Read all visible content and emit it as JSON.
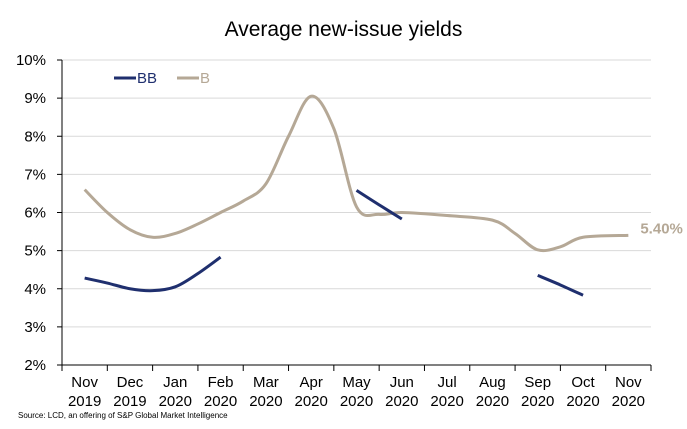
{
  "chart_data": {
    "type": "line",
    "title": "Average new-issue yields",
    "source": "Source: LCD, an offering of S&P Global Market Intelligence",
    "xlabel": "",
    "ylabel": "",
    "ylim": [
      2,
      10
    ],
    "y_ticks": [
      "2%",
      "3%",
      "4%",
      "5%",
      "6%",
      "7%",
      "8%",
      "9%",
      "10%"
    ],
    "grid": true,
    "legend_position": "top-left",
    "categories": [
      [
        "Nov",
        "2019"
      ],
      [
        "Dec",
        "2019"
      ],
      [
        "Jan",
        "2020"
      ],
      [
        "Feb",
        "2020"
      ],
      [
        "Mar",
        "2020"
      ],
      [
        "Apr",
        "2020"
      ],
      [
        "May",
        "2020"
      ],
      [
        "Jun",
        "2020"
      ],
      [
        "Jul",
        "2020"
      ],
      [
        "Aug",
        "2020"
      ],
      [
        "Sep",
        "2020"
      ],
      [
        "Oct",
        "2020"
      ],
      [
        "Nov",
        "2020"
      ]
    ],
    "series": [
      {
        "name": "BB",
        "color": "#1f2f6e",
        "x": [
          0,
          0.5,
          1,
          1.5,
          2,
          2.5,
          3,
          6,
          6.5,
          7,
          10,
          10.5,
          11
        ],
        "values": [
          4.28,
          4.15,
          4.0,
          3.95,
          4.05,
          4.4,
          4.83,
          6.58,
          6.2,
          5.83,
          4.35,
          4.1,
          3.83
        ],
        "segments": [
          [
            0,
            6
          ],
          [
            7,
            9
          ],
          [
            10,
            12
          ]
        ]
      },
      {
        "name": "B",
        "color": "#b5a896",
        "x": [
          0,
          0.5,
          1,
          1.5,
          2,
          2.5,
          3,
          3.5,
          4,
          4.5,
          5,
          5.5,
          6,
          6.5,
          7,
          8,
          9,
          9.5,
          10,
          10.5,
          11,
          12
        ],
        "values": [
          6.6,
          6.0,
          5.55,
          5.35,
          5.45,
          5.7,
          6.0,
          6.3,
          6.75,
          8.0,
          9.05,
          8.2,
          6.15,
          5.95,
          6.0,
          5.92,
          5.8,
          5.45,
          5.02,
          5.1,
          5.35,
          5.4
        ],
        "segments": [
          [
            0,
            21
          ]
        ]
      }
    ],
    "end_label": {
      "series": "B",
      "text": "5.40%",
      "color": "#b5a896"
    }
  }
}
